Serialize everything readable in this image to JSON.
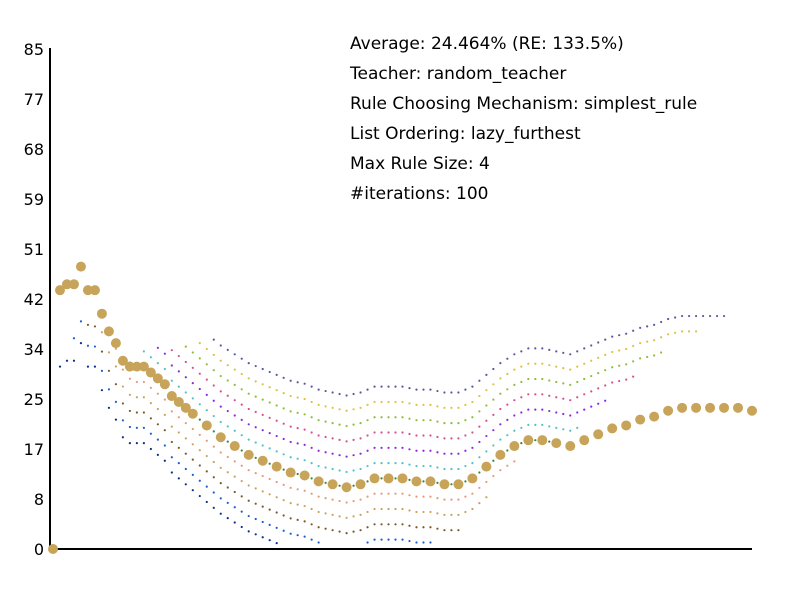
{
  "chart_data": {
    "type": "scatter",
    "title": "",
    "xlabel": "",
    "ylabel": "",
    "ylim": [
      0,
      85
    ],
    "xlim": [
      0,
      100
    ],
    "y_ticks": [
      "0",
      "8",
      "17",
      "25",
      "34",
      "42",
      "51",
      "59",
      "68",
      "77",
      "85"
    ],
    "info": [
      "Average: 24.464% (RE: 133.5%)",
      "Teacher: random_teacher",
      "Rule Choosing Mechanism: simplest_rule",
      "List Ordering: lazy_furthest",
      "Max Rule Size: 4",
      "#iterations: 100"
    ],
    "main_series": {
      "color": "#c8a45a",
      "x": [
        0,
        1,
        2,
        3,
        4,
        5,
        6,
        7,
        8,
        9,
        10,
        11,
        12,
        13,
        14,
        15,
        16,
        17,
        18,
        19,
        20,
        22,
        24,
        26,
        28,
        30,
        32,
        34,
        36,
        38,
        40,
        42,
        44,
        46,
        48,
        50,
        52,
        54,
        56,
        58,
        60,
        62,
        64,
        66,
        68,
        70,
        72,
        74,
        76,
        78,
        80,
        82,
        84,
        86,
        88,
        90,
        92,
        94,
        96,
        98,
        100
      ],
      "y": [
        0,
        44,
        45,
        45,
        48,
        44,
        44,
        40,
        37,
        35,
        32,
        31,
        31,
        31,
        30,
        29,
        28,
        26,
        25,
        24,
        23,
        21,
        19,
        17.5,
        16,
        15,
        14,
        13,
        12.5,
        11.5,
        11,
        10.5,
        11,
        12,
        12,
        12,
        11.5,
        11.5,
        11,
        11,
        12,
        14,
        16,
        17.5,
        18.5,
        18.5,
        18,
        17.5,
        18.5,
        19.5,
        20.5,
        21,
        22,
        22.5,
        23.5,
        24,
        24,
        24,
        24,
        24,
        23.5
      ]
    },
    "background_series_colors": [
      "#0b2f8a",
      "#1a5fd1",
      "#7a5a2a",
      "#c8a45a",
      "#e69a7a",
      "#2e8b3a",
      "#4fc3c3",
      "#8a2be2",
      "#d94f8a",
      "#8fbc3a",
      "#e0c040",
      "#5a5a9a"
    ]
  }
}
